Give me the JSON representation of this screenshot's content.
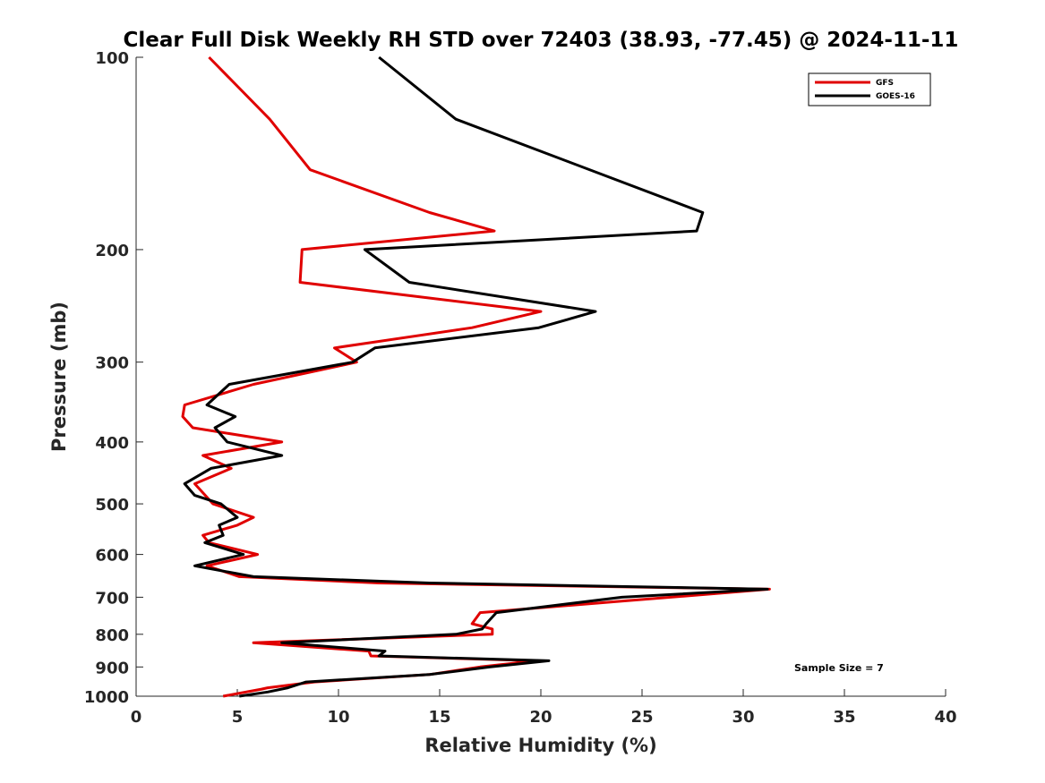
{
  "chart_data": {
    "type": "line",
    "title": "Clear Full Disk Weekly RH STD over 72403 (38.93, -77.45) @ 2024-11-11",
    "xlabel": "Relative Humidity (%)",
    "ylabel": "Pressure (mb)",
    "xlim": [
      0,
      40
    ],
    "ylim": [
      100,
      1000
    ],
    "yscale": "log",
    "y_reversed": true,
    "x_ticks": [
      "0",
      "5",
      "10",
      "15",
      "20",
      "25",
      "30",
      "35",
      "40"
    ],
    "y_ticks": [
      "100",
      "200",
      "300",
      "400",
      "500",
      "600",
      "700",
      "800",
      "900",
      "1000"
    ],
    "grid": false,
    "legend_position": "top-right",
    "annotation": "Sample Size = 7",
    "series": [
      {
        "name": "GFS",
        "color": "#e00000",
        "points": [
          {
            "x": 3.6,
            "y": 100
          },
          {
            "x": 6.6,
            "y": 125
          },
          {
            "x": 8.6,
            "y": 150
          },
          {
            "x": 14.5,
            "y": 175
          },
          {
            "x": 17.7,
            "y": 187
          },
          {
            "x": 8.2,
            "y": 200
          },
          {
            "x": 8.1,
            "y": 225
          },
          {
            "x": 20.0,
            "y": 250
          },
          {
            "x": 16.6,
            "y": 265
          },
          {
            "x": 9.8,
            "y": 285
          },
          {
            "x": 10.9,
            "y": 300
          },
          {
            "x": 5.8,
            "y": 325
          },
          {
            "x": 2.4,
            "y": 350
          },
          {
            "x": 2.3,
            "y": 365
          },
          {
            "x": 2.8,
            "y": 380
          },
          {
            "x": 7.2,
            "y": 400
          },
          {
            "x": 3.3,
            "y": 420
          },
          {
            "x": 4.7,
            "y": 440
          },
          {
            "x": 2.9,
            "y": 465
          },
          {
            "x": 3.8,
            "y": 500
          },
          {
            "x": 5.8,
            "y": 525
          },
          {
            "x": 5.0,
            "y": 540
          },
          {
            "x": 3.3,
            "y": 560
          },
          {
            "x": 3.6,
            "y": 575
          },
          {
            "x": 6.0,
            "y": 600
          },
          {
            "x": 3.5,
            "y": 625
          },
          {
            "x": 5.1,
            "y": 650
          },
          {
            "x": 12.0,
            "y": 665
          },
          {
            "x": 31.3,
            "y": 680
          },
          {
            "x": 24.0,
            "y": 710
          },
          {
            "x": 17.0,
            "y": 740
          },
          {
            "x": 16.6,
            "y": 770
          },
          {
            "x": 17.6,
            "y": 785
          },
          {
            "x": 17.6,
            "y": 800
          },
          {
            "x": 5.8,
            "y": 825
          },
          {
            "x": 11.5,
            "y": 850
          },
          {
            "x": 11.6,
            "y": 865
          },
          {
            "x": 19.8,
            "y": 880
          },
          {
            "x": 17.0,
            "y": 900
          },
          {
            "x": 14.5,
            "y": 925
          },
          {
            "x": 8.8,
            "y": 950
          },
          {
            "x": 6.5,
            "y": 970
          },
          {
            "x": 6.2,
            "y": 975
          },
          {
            "x": 4.3,
            "y": 1000
          }
        ]
      },
      {
        "name": "GOES-16",
        "color": "#000000",
        "points": [
          {
            "x": 12.0,
            "y": 100
          },
          {
            "x": 15.8,
            "y": 125
          },
          {
            "x": 28.0,
            "y": 175
          },
          {
            "x": 27.7,
            "y": 187
          },
          {
            "x": 11.3,
            "y": 200
          },
          {
            "x": 13.5,
            "y": 225
          },
          {
            "x": 22.7,
            "y": 250
          },
          {
            "x": 19.9,
            "y": 265
          },
          {
            "x": 11.8,
            "y": 285
          },
          {
            "x": 10.7,
            "y": 300
          },
          {
            "x": 4.6,
            "y": 325
          },
          {
            "x": 3.5,
            "y": 350
          },
          {
            "x": 4.9,
            "y": 365
          },
          {
            "x": 3.9,
            "y": 380
          },
          {
            "x": 4.5,
            "y": 400
          },
          {
            "x": 7.2,
            "y": 420
          },
          {
            "x": 3.7,
            "y": 440
          },
          {
            "x": 2.4,
            "y": 465
          },
          {
            "x": 2.9,
            "y": 485
          },
          {
            "x": 4.2,
            "y": 500
          },
          {
            "x": 5.0,
            "y": 525
          },
          {
            "x": 4.1,
            "y": 540
          },
          {
            "x": 4.3,
            "y": 560
          },
          {
            "x": 3.4,
            "y": 575
          },
          {
            "x": 5.3,
            "y": 600
          },
          {
            "x": 2.9,
            "y": 625
          },
          {
            "x": 5.8,
            "y": 650
          },
          {
            "x": 14.5,
            "y": 665
          },
          {
            "x": 31.2,
            "y": 680
          },
          {
            "x": 24.0,
            "y": 700
          },
          {
            "x": 17.8,
            "y": 740
          },
          {
            "x": 17.3,
            "y": 770
          },
          {
            "x": 17.1,
            "y": 785
          },
          {
            "x": 15.8,
            "y": 800
          },
          {
            "x": 7.2,
            "y": 825
          },
          {
            "x": 12.3,
            "y": 850
          },
          {
            "x": 12.0,
            "y": 865
          },
          {
            "x": 20.4,
            "y": 880
          },
          {
            "x": 17.5,
            "y": 900
          },
          {
            "x": 14.5,
            "y": 925
          },
          {
            "x": 8.4,
            "y": 950
          },
          {
            "x": 7.5,
            "y": 970
          },
          {
            "x": 6.5,
            "y": 985
          },
          {
            "x": 5.1,
            "y": 1000
          }
        ]
      }
    ]
  }
}
